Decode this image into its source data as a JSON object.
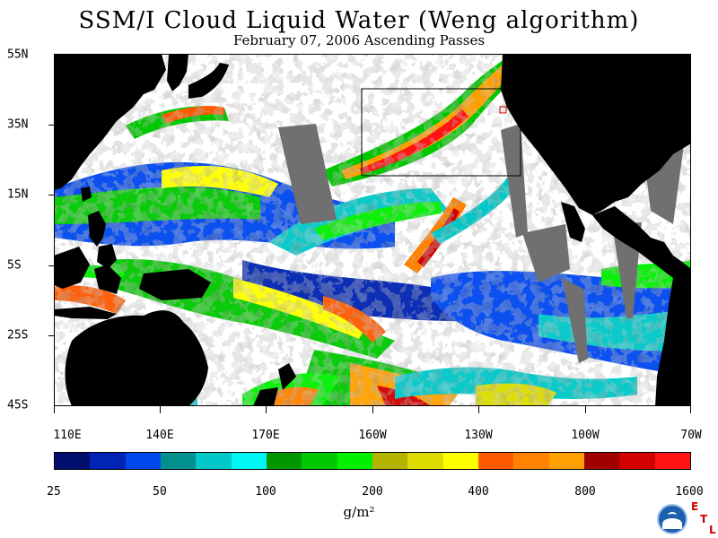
{
  "title": "SSM/I Cloud Liquid Water (Weng algorithm)",
  "subtitle": "February 07, 2006  Ascending Passes",
  "latitude_labels": [
    "55N",
    "35N",
    "15N",
    "5S",
    "25S",
    "45S"
  ],
  "longitude_labels": [
    "110E",
    "140E",
    "170E",
    "160W",
    "130W",
    "100W",
    "70W"
  ],
  "colorbar": {
    "labels": [
      "25",
      "50",
      "100",
      "200",
      "400",
      "800",
      "1600"
    ],
    "units": "g/m²",
    "colors": [
      "#000f6e",
      "#0024b3",
      "#0047f0",
      "#00918f",
      "#00c8c8",
      "#00f5f5",
      "#009600",
      "#00c800",
      "#00f000",
      "#b4b400",
      "#dcdc00",
      "#ffff00",
      "#ff5a00",
      "#ff8200",
      "#ffa000",
      "#a00000",
      "#d20000",
      "#ff1414"
    ]
  },
  "logo": {
    "name": "NOAA",
    "lab_letters": [
      "E",
      "T",
      "L"
    ]
  },
  "colors": {
    "land": "#000000",
    "no_data_swath_gap": "#707070",
    "background": "#ffffff",
    "analysis_box": "#000000",
    "marker": "#d00000"
  }
}
